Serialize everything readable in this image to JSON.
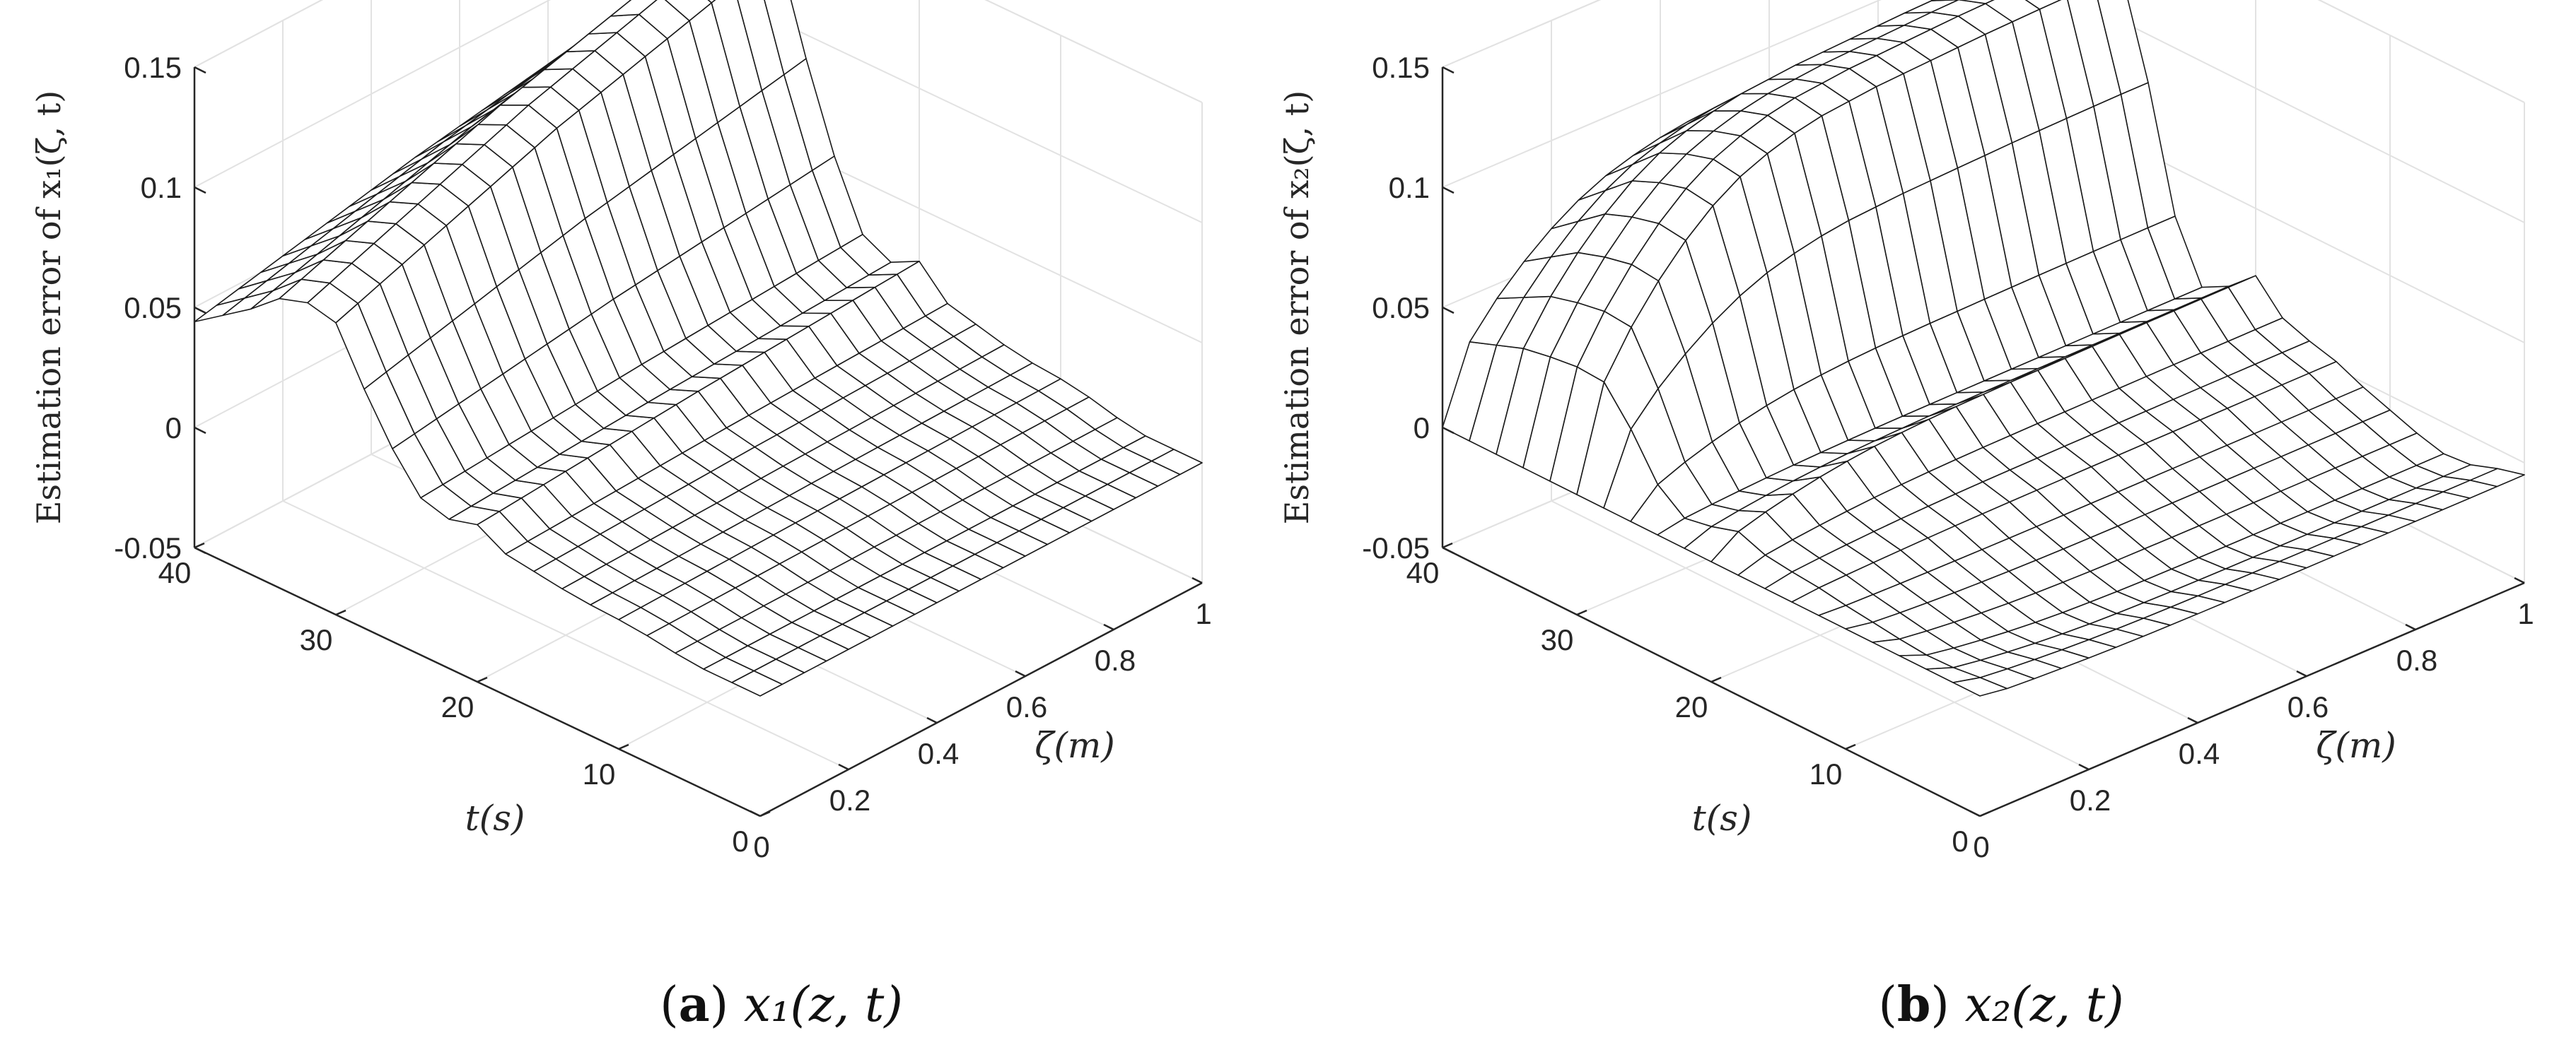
{
  "chart_data": [
    {
      "type": "surface",
      "panel": "(a)",
      "caption_tag": "a",
      "caption_math": "x₁(z, t)",
      "zlabel": "Estimation error of x₁(ζ, t)",
      "xlabel": "ζ(m)",
      "ylabel": "t(s)",
      "xlim": [
        0,
        1
      ],
      "ylim": [
        0,
        40
      ],
      "zlim": [
        -0.05,
        0.15
      ],
      "xticks": [
        "0",
        "0.2",
        "0.4",
        "0.6",
        "0.8",
        "1"
      ],
      "yticks": [
        "0",
        "10",
        "20",
        "30",
        "40"
      ],
      "zticks": [
        "-0.05",
        "0",
        "0.05",
        "0.1",
        "0.15"
      ],
      "grid": true,
      "zeta": [
        0,
        0.05,
        0.1,
        0.15,
        0.2,
        0.25,
        0.3,
        0.35,
        0.4,
        0.45,
        0.5,
        0.55,
        0.6,
        0.65,
        0.7,
        0.75,
        0.8,
        0.85,
        0.9,
        0.95,
        1.0
      ],
      "t": [
        0,
        2,
        4,
        6,
        8,
        10,
        12,
        14,
        16,
        18,
        20,
        22,
        24,
        26,
        28,
        30,
        32,
        34,
        36,
        38,
        40
      ],
      "t_profile": [
        0.0,
        0.0,
        0.0,
        0.002,
        0.005,
        0.007,
        0.008,
        0.01,
        0.013,
        0.016,
        0.028,
        0.022,
        0.028,
        0.055,
        0.09,
        0.13,
        0.135,
        0.128,
        0.11,
        0.095,
        0.08
      ],
      "zeta_factor": [
        0.55,
        0.575,
        0.6,
        0.625,
        0.65,
        0.675,
        0.7,
        0.725,
        0.75,
        0.775,
        0.8,
        0.82,
        0.84,
        0.86,
        0.88,
        0.9,
        0.92,
        0.94,
        0.96,
        0.98,
        1.0
      ]
    },
    {
      "type": "surface",
      "panel": "(b)",
      "caption_tag": "b",
      "caption_math": "x₂(z, t)",
      "zlabel": "Estimation error of x₂(ζ, t)",
      "xlabel": "ζ(m)",
      "ylabel": "t(s)",
      "xlim": [
        0,
        1
      ],
      "ylim": [
        0,
        40
      ],
      "zlim": [
        -0.05,
        0.15
      ],
      "xticks": [
        "0",
        "0.2",
        "0.4",
        "0.6",
        "0.8",
        "1"
      ],
      "yticks": [
        "0",
        "10",
        "20",
        "30",
        "40"
      ],
      "zticks": [
        "-0.05",
        "0",
        "0.05",
        "0.1",
        "0.15"
      ],
      "grid": true,
      "zeta": [
        0,
        0.05,
        0.1,
        0.15,
        0.2,
        0.25,
        0.3,
        0.35,
        0.4,
        0.45,
        0.5,
        0.55,
        0.6,
        0.65,
        0.7,
        0.75,
        0.8,
        0.85,
        0.9,
        0.95,
        1.0
      ],
      "t": [
        0,
        2,
        4,
        6,
        8,
        10,
        12,
        14,
        16,
        18,
        20,
        22,
        24,
        26,
        28,
        30,
        32,
        34,
        36,
        38,
        40
      ],
      "t_profile": [
        -0.005,
        -0.008,
        -0.012,
        -0.013,
        -0.01,
        -0.006,
        -0.002,
        0.003,
        0.006,
        0.01,
        0.022,
        0.012,
        0.006,
        0.03,
        0.08,
        0.12,
        0.122,
        0.118,
        0.112,
        0.1,
        0.088
      ],
      "zeta_factor": [
        0.0,
        0.35,
        0.5,
        0.62,
        0.72,
        0.8,
        0.86,
        0.9,
        0.93,
        0.95,
        0.96,
        0.97,
        0.975,
        0.98,
        0.985,
        0.99,
        0.993,
        0.996,
        0.998,
        1.0,
        1.0
      ]
    }
  ]
}
